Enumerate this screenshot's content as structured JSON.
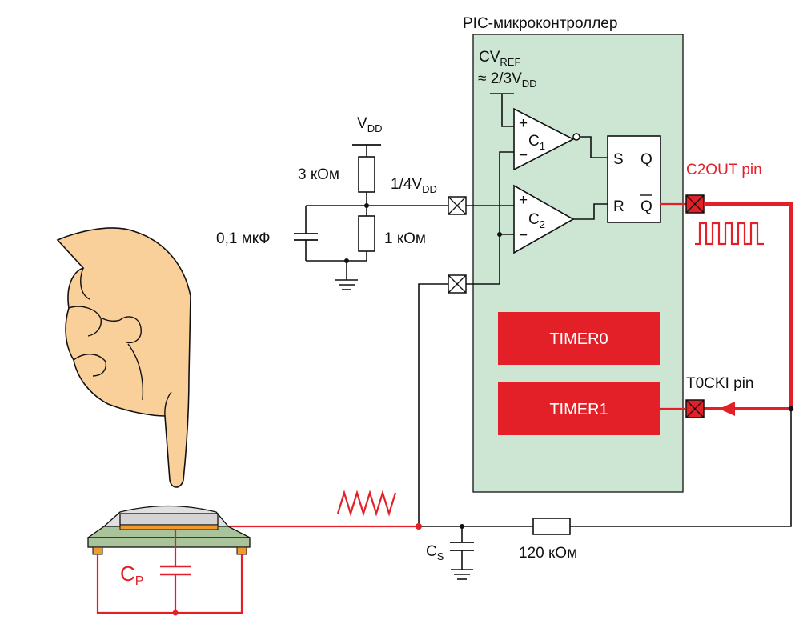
{
  "colors": {
    "chip_fill": "#cce6d3",
    "red": "#e32028",
    "skin": "#f9cf9a",
    "wire": "#111111"
  },
  "icons": [
    "pointing-finger-icon",
    "touch-sensor-pad-icon",
    "ground-icon",
    "square-wave-icon",
    "triangle-wave-icon"
  ],
  "chip": {
    "title": "PIC-микроконтроллер"
  },
  "cvref": {
    "main": "CV",
    "sub": "REF",
    "approx": "≈ 2/3V",
    "approx_sub": "DD"
  },
  "comparators": {
    "c1": {
      "plus": "+",
      "minus": "−",
      "name": "C",
      "sub": "1"
    },
    "c2": {
      "plus": "+",
      "minus": "−",
      "name": "C",
      "sub": "2"
    }
  },
  "latch": {
    "s": "S",
    "r": "R",
    "q": "Q",
    "qbar": "Q"
  },
  "timers": {
    "timer0": "TIMER0",
    "timer1": "TIMER1"
  },
  "pins": {
    "c2out": "C2OUT pin",
    "t0cki": "T0CKI pin"
  },
  "divider": {
    "vdd": "V",
    "vdd_sub": "DD",
    "r_top": "3 кОм",
    "r_bottom": "1 кОм",
    "cap": "0,1 мкФ",
    "tap": "1/4V",
    "tap_sub": "DD"
  },
  "sense": {
    "cs": "C",
    "cs_sub": "S",
    "r_fb": "120 кОм",
    "cp": "C",
    "cp_sub": "P"
  }
}
